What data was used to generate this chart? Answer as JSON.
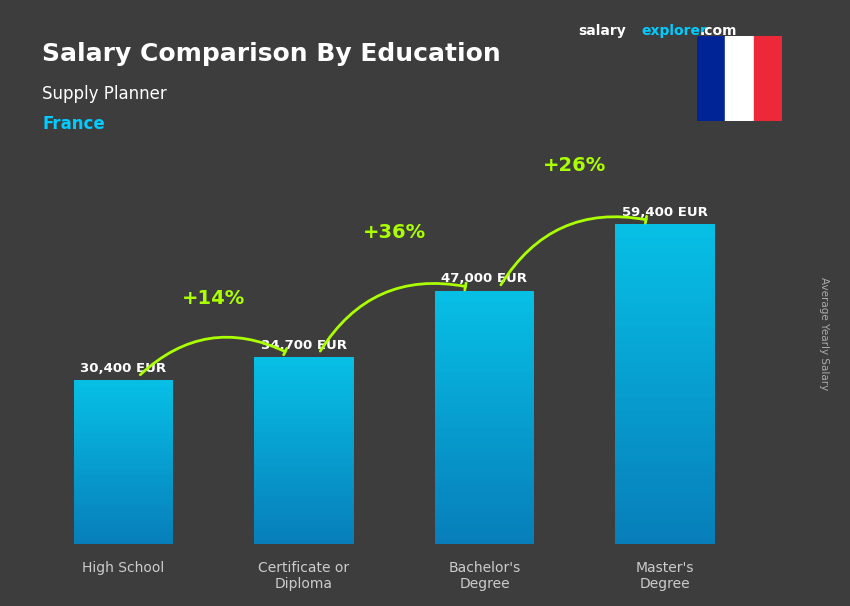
{
  "title_line1": "Salary Comparison By Education",
  "subtitle": "Supply Planner",
  "country": "France",
  "categories": [
    "High School",
    "Certificate or\nDiploma",
    "Bachelor's\nDegree",
    "Master's\nDegree"
  ],
  "values": [
    30400,
    34700,
    47000,
    59400
  ],
  "value_labels": [
    "30,400 EUR",
    "34,700 EUR",
    "47,000 EUR",
    "59,400 EUR"
  ],
  "pct_labels": [
    "+14%",
    "+36%",
    "+26%"
  ],
  "bar_color_top": "#00d4ff",
  "bar_color_bottom": "#0088cc",
  "bar_width": 0.55,
  "background_color": "#1a1a2e",
  "title_color": "#ffffff",
  "subtitle_color": "#ffffff",
  "country_color": "#00ccff",
  "value_label_color": "#ffffff",
  "pct_color": "#aaff00",
  "arrow_color": "#aaff00",
  "xlabel_color": "#cccccc",
  "brand_salary": "salary",
  "brand_explorer": "explorer",
  "brand_dot_com": ".com",
  "brand_color_salary": "#ffffff",
  "brand_color_explorer": "#00ccff",
  "right_label": "Average Yearly Salary",
  "ylim_max": 70000
}
